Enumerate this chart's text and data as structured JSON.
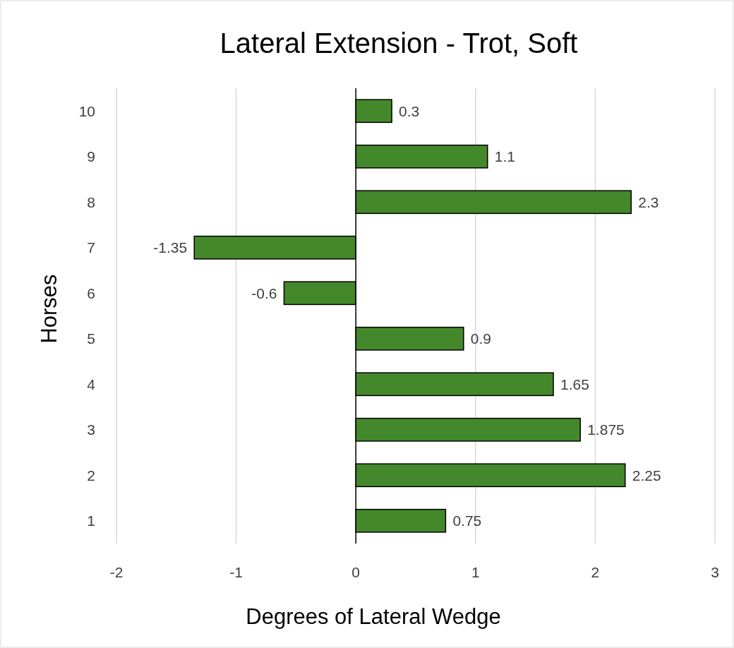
{
  "chart_data": {
    "type": "bar",
    "orientation": "horizontal",
    "title": "Lateral Extension - Trot, Soft",
    "xlabel": "Degrees of Lateral Wedge",
    "ylabel": "Horses",
    "categories": [
      "10",
      "9",
      "8",
      "7",
      "6",
      "5",
      "4",
      "3",
      "2",
      "1"
    ],
    "values": [
      0.3,
      1.1,
      2.3,
      -1.35,
      -0.6,
      0.9,
      1.65,
      1.875,
      2.25,
      0.75
    ],
    "color": "#43882a",
    "xlim": [
      -2,
      3
    ],
    "xticks": [
      -2,
      -1,
      0,
      1,
      2,
      3
    ],
    "grid": "x",
    "data_labels": true
  }
}
